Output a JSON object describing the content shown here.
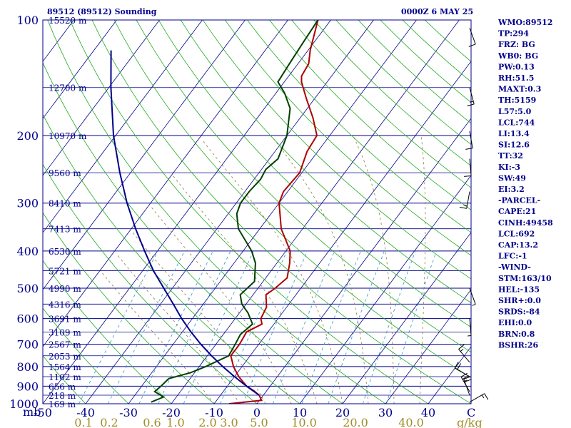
{
  "header": {
    "left": "89512 (89512) Sounding",
    "right": "0000Z  6 MAY 25"
  },
  "side_panel": [
    "WMO:89512",
    "TP:294",
    "FRZ: BG",
    "WB0: BG",
    "PW:0.13",
    "RH:51.5",
    "MAXT:0.3",
    "TH:5159",
    "L57:5.0",
    "LCL:744",
    "LI:13.4",
    "SI:12.6",
    "TT:32",
    "KI:-3",
    "SW:49",
    "EI:3.2",
    "-PARCEL-",
    "CAPE:21",
    "CINH:49458",
    "LCL:692",
    "CAP:13.2",
    "LFC:-1",
    "-WIND-",
    "STM:163/10",
    "HEL:-135",
    "SHR+:0.0",
    "SRDS:-84",
    "EHI:0.0",
    "BRN:0.8",
    "BSHR:26"
  ],
  "chart_data": {
    "type": "line",
    "title": "89512 (89512) Sounding",
    "xlabel": "",
    "ylabel": "mb",
    "x_unit_label": "C",
    "mixing_unit_label": "g/kg",
    "xlim": [
      -50,
      50
    ],
    "ylim": [
      1000,
      100
    ],
    "y_scale": "log",
    "grid": true,
    "pressure_ticks": [
      {
        "p": 100,
        "label": "100"
      },
      {
        "p": 200,
        "label": "200"
      },
      {
        "p": 300,
        "label": "300"
      },
      {
        "p": 400,
        "label": "400"
      },
      {
        "p": 500,
        "label": "500"
      },
      {
        "p": 600,
        "label": "600"
      },
      {
        "p": 700,
        "label": "700"
      },
      {
        "p": 800,
        "label": "800"
      },
      {
        "p": 900,
        "label": "900"
      },
      {
        "p": 1000,
        "label": "1000"
      }
    ],
    "height_labels": [
      {
        "p": 100,
        "label": "15520 m"
      },
      {
        "p": 150,
        "label": "12700 m"
      },
      {
        "p": 200,
        "label": "10970 m"
      },
      {
        "p": 250,
        "label": "9560 m"
      },
      {
        "p": 300,
        "label": "8410 m"
      },
      {
        "p": 350,
        "label": "7413 m"
      },
      {
        "p": 400,
        "label": "6530 m"
      },
      {
        "p": 450,
        "label": "5721 m"
      },
      {
        "p": 500,
        "label": "4990 m"
      },
      {
        "p": 550,
        "label": "4316 m"
      },
      {
        "p": 600,
        "label": "3691 m"
      },
      {
        "p": 650,
        "label": "3109 m"
      },
      {
        "p": 700,
        "label": "2567 m"
      },
      {
        "p": 750,
        "label": "2053 m"
      },
      {
        "p": 800,
        "label": "1564 m"
      },
      {
        "p": 850,
        "label": "1102 m"
      },
      {
        "p": 900,
        "label": "656 m"
      },
      {
        "p": 950,
        "label": "218 m"
      },
      {
        "p": 1000,
        "label": "169 m"
      }
    ],
    "temp_ticks": [
      {
        "t": -50,
        "label": "-50"
      },
      {
        "t": -40,
        "label": "-40"
      },
      {
        "t": -30,
        "label": "-30"
      },
      {
        "t": -20,
        "label": "-20"
      },
      {
        "t": -10,
        "label": "-10"
      },
      {
        "t": 0,
        "label": "0"
      },
      {
        "t": 10,
        "label": "10"
      },
      {
        "t": 20,
        "label": "20"
      },
      {
        "t": 30,
        "label": "30"
      },
      {
        "t": 40,
        "label": "40"
      }
    ],
    "mixing_ratio_labels": [
      {
        "w": 0.1,
        "t": -40.5,
        "label": "0.1"
      },
      {
        "w": 0.2,
        "t": -34.5,
        "label": "0.2"
      },
      {
        "w": 0.6,
        "t": -24.5,
        "label": "0.6"
      },
      {
        "w": 1.0,
        "t": -19,
        "label": "1.0"
      },
      {
        "w": 2.0,
        "t": -11.5,
        "label": "2.0"
      },
      {
        "w": 3.0,
        "t": -6.5,
        "label": "3.0"
      },
      {
        "w": 5.0,
        "t": 0.5,
        "label": "5.0"
      },
      {
        "w": 10.0,
        "t": 11,
        "label": "10.0"
      },
      {
        "w": 20.0,
        "t": 23,
        "label": "20.0"
      },
      {
        "w": 40.0,
        "t": 36,
        "label": "40.0"
      }
    ],
    "series": [
      {
        "name": "Temperature",
        "color": "#b00000",
        "points": [
          [
            1000,
            -6.5
          ],
          [
            980,
            0.5
          ],
          [
            950,
            -1.0
          ],
          [
            925,
            -3.0
          ],
          [
            900,
            -5.5
          ],
          [
            850,
            -9.0
          ],
          [
            800,
            -12.0
          ],
          [
            750,
            -14.5
          ],
          [
            700,
            -14.5
          ],
          [
            650,
            -15.0
          ],
          [
            620,
            -12.8
          ],
          [
            600,
            -14.0
          ],
          [
            560,
            -14.7
          ],
          [
            520,
            -17.0
          ],
          [
            500,
            -16.0
          ],
          [
            470,
            -15.0
          ],
          [
            430,
            -17.0
          ],
          [
            400,
            -19.0
          ],
          [
            350,
            -25.0
          ],
          [
            300,
            -30.0
          ],
          [
            280,
            -31.0
          ],
          [
            250,
            -30.5
          ],
          [
            220,
            -32.5
          ],
          [
            200,
            -33.0
          ],
          [
            180,
            -37.0
          ],
          [
            160,
            -42.0
          ],
          [
            145,
            -46.0
          ],
          [
            140,
            -47.0
          ],
          [
            130,
            -47.5
          ],
          [
            120,
            -49.5
          ],
          [
            100,
            -53.0
          ]
        ]
      },
      {
        "name": "Dewpoint",
        "color": "#004000",
        "points": [
          [
            990,
            -25.0
          ],
          [
            960,
            -23.0
          ],
          [
            930,
            -26.0
          ],
          [
            900,
            -25.5
          ],
          [
            860,
            -25.0
          ],
          [
            830,
            -21.0
          ],
          [
            800,
            -18.5
          ],
          [
            750,
            -15.0
          ],
          [
            700,
            -15.5
          ],
          [
            660,
            -16.0
          ],
          [
            620,
            -15.0
          ],
          [
            580,
            -18.0
          ],
          [
            550,
            -21.0
          ],
          [
            520,
            -23.0
          ],
          [
            480,
            -22.0
          ],
          [
            430,
            -25.0
          ],
          [
            400,
            -28.0
          ],
          [
            350,
            -35.0
          ],
          [
            320,
            -38.0
          ],
          [
            300,
            -39.0
          ],
          [
            280,
            -39.0
          ],
          [
            260,
            -38.5
          ],
          [
            245,
            -39.0
          ],
          [
            230,
            -38.0
          ],
          [
            200,
            -40.0
          ],
          [
            170,
            -44.0
          ],
          [
            155,
            -48.0
          ],
          [
            145,
            -51.5
          ],
          [
            130,
            -52.0
          ],
          [
            115,
            -52.5
          ],
          [
            100,
            -53.0
          ]
        ]
      },
      {
        "name": "Parcel",
        "color": "#00008b",
        "points": [
          [
            950,
            -1.0
          ],
          [
            900,
            -5.5
          ],
          [
            850,
            -10.0
          ],
          [
            800,
            -14.5
          ],
          [
            750,
            -19.0
          ],
          [
            700,
            -23.5
          ],
          [
            650,
            -28.0
          ],
          [
            600,
            -32.5
          ],
          [
            550,
            -37.0
          ],
          [
            500,
            -42.0
          ],
          [
            450,
            -47.5
          ],
          [
            400,
            -53.0
          ],
          [
            350,
            -59.0
          ],
          [
            300,
            -65.5
          ],
          [
            250,
            -72.5
          ],
          [
            200,
            -80.5
          ],
          [
            150,
            -89.5
          ],
          [
            120,
            -96.0
          ]
        ]
      }
    ],
    "wind_barbs": [
      {
        "p": 105,
        "dir": 160,
        "spd": 10
      },
      {
        "p": 150,
        "dir": 165,
        "spd": 15
      },
      {
        "p": 195,
        "dir": 170,
        "spd": 10
      },
      {
        "p": 230,
        "dir": 175,
        "spd": 10
      },
      {
        "p": 280,
        "dir": 190,
        "spd": 15
      },
      {
        "p": 500,
        "dir": 160,
        "spd": 5
      },
      {
        "p": 600,
        "dir": 175,
        "spd": 5
      },
      {
        "p": 780,
        "dir": 320,
        "spd": 15
      },
      {
        "p": 850,
        "dir": 300,
        "spd": 20
      },
      {
        "p": 930,
        "dir": 330,
        "spd": 25
      },
      {
        "p": 950,
        "dir": 340,
        "spd": 20
      },
      {
        "p": 990,
        "dir": 60,
        "spd": 15
      }
    ]
  }
}
